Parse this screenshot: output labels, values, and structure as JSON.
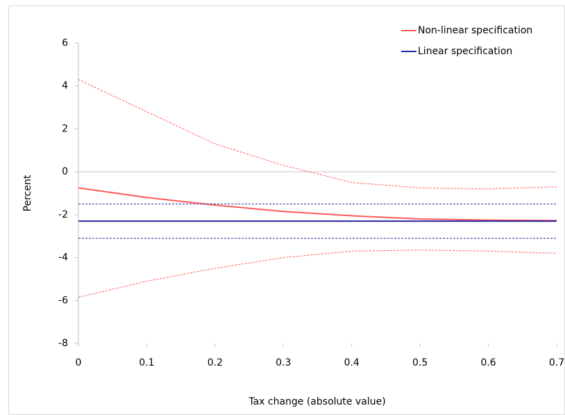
{
  "chart_data": {
    "type": "line",
    "x_label": "Tax change (absolute value)",
    "y_label": "Percent",
    "x": [
      0,
      0.1,
      0.2,
      0.3,
      0.4,
      0.5,
      0.6,
      0.7
    ],
    "series": [
      {
        "name": "Non-linear specification",
        "color": "#ff5a5a",
        "values": [
          -0.75,
          -1.2,
          -1.55,
          -1.85,
          -2.05,
          -2.2,
          -2.25,
          -2.27
        ]
      },
      {
        "color": "#ff5a5a",
        "dashed": true,
        "values": [
          4.3,
          2.8,
          1.3,
          0.3,
          -0.5,
          -0.75,
          -0.8,
          -0.7
        ]
      },
      {
        "color": "#ff5a5a",
        "dashed": true,
        "values": [
          -5.85,
          -5.1,
          -4.5,
          -4.0,
          -3.7,
          -3.65,
          -3.7,
          -3.8
        ]
      },
      {
        "name": "Linear specification",
        "color": "#2424a8",
        "values": [
          -2.3,
          -2.3,
          -2.3,
          -2.3,
          -2.3,
          -2.3,
          -2.3,
          -2.3
        ]
      },
      {
        "color": "#2424a8",
        "dashed": true,
        "values": [
          -1.5,
          -1.5,
          -1.5,
          -1.5,
          -1.5,
          -1.5,
          -1.5,
          -1.5
        ]
      },
      {
        "color": "#2424a8",
        "dashed": true,
        "values": [
          -3.1,
          -3.1,
          -3.1,
          -3.1,
          -3.1,
          -3.1,
          -3.1,
          -3.1
        ]
      }
    ],
    "xlim": [
      0,
      0.7
    ],
    "xticks": [
      0,
      0.1,
      0.2,
      0.3,
      0.4,
      0.5,
      0.6,
      0.7
    ],
    "ylim": [
      -8,
      6
    ],
    "yticks": [
      -8,
      -6,
      -4,
      -2,
      0,
      2,
      4,
      6
    ],
    "legend": "top-right"
  }
}
